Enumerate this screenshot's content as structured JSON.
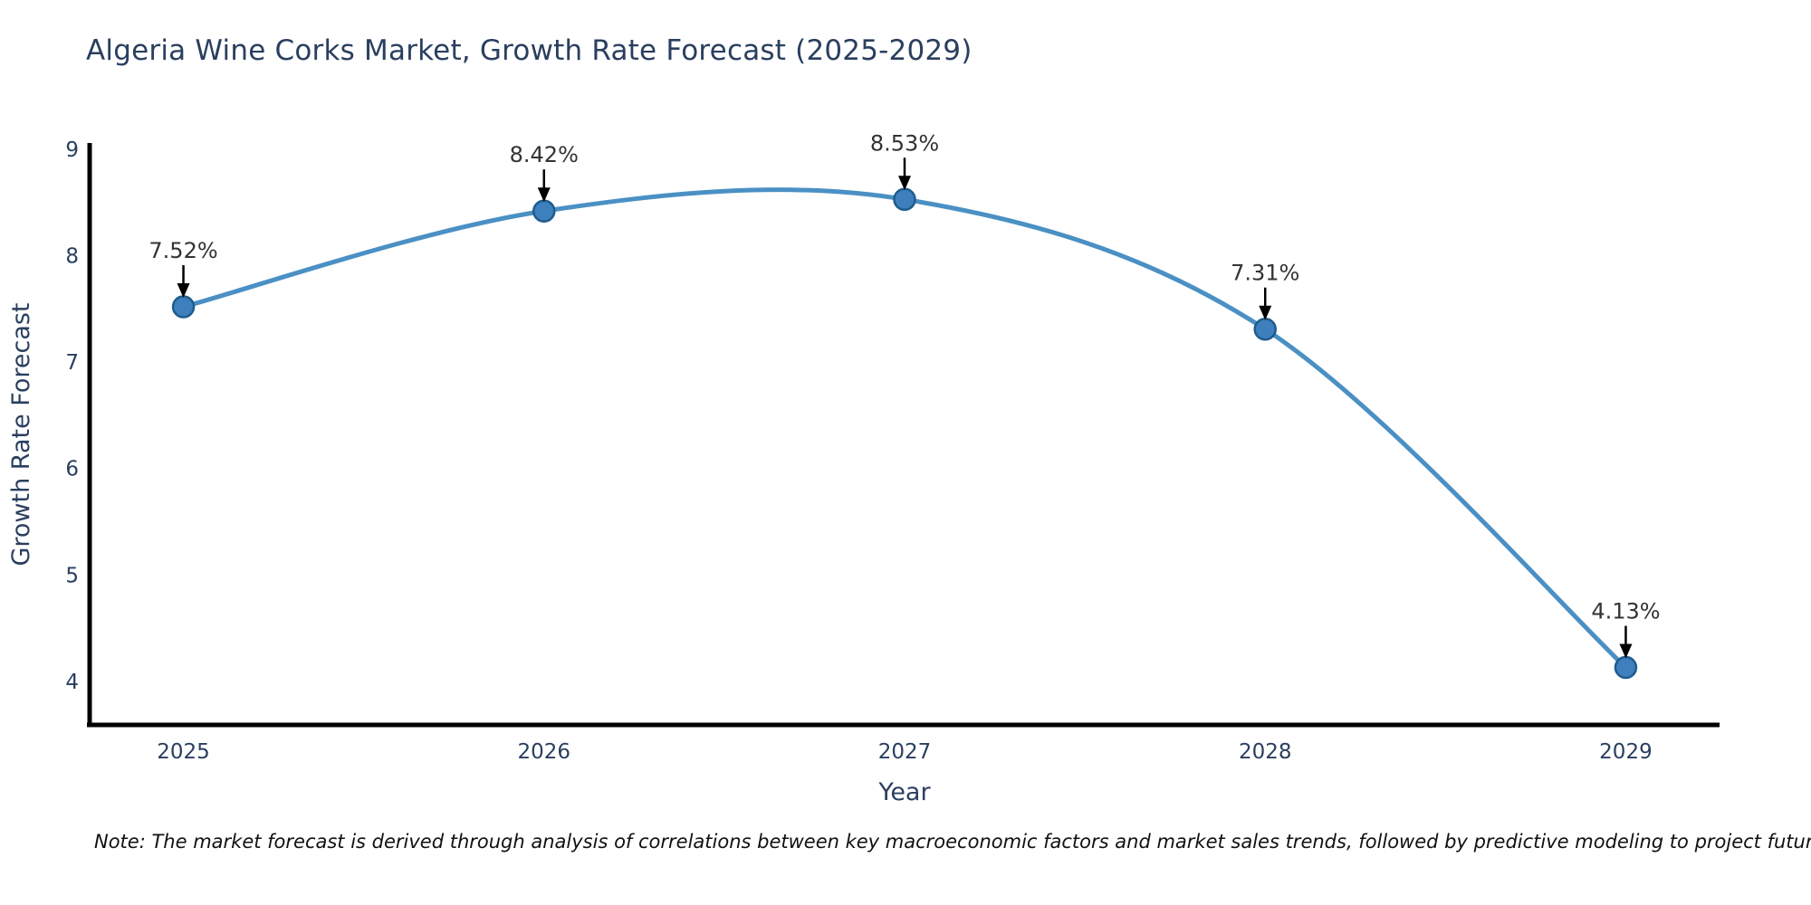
{
  "title": {
    "text": "Algeria Wine Corks Market, Growth Rate Forecast (2025-2029)"
  },
  "note": {
    "text": "Note: The market forecast is derived through analysis of correlations between key macroeconomic factors and market sales trends, followed by predictive modeling to project future sales."
  },
  "chart_data": {
    "type": "line",
    "line_shape": "spline",
    "title": "Algeria Wine Corks Market, Growth Rate Forecast (2025-2029)",
    "xlabel": "Year",
    "ylabel": "Growth Rate Forecast",
    "x": [
      2025,
      2026,
      2027,
      2028,
      2029
    ],
    "values": [
      7.52,
      8.42,
      8.53,
      7.31,
      4.13
    ],
    "point_labels": [
      "7.52%",
      "8.42%",
      "8.53%",
      "7.31%",
      "4.13%"
    ],
    "xticks": [
      2025,
      2026,
      2027,
      2028,
      2029
    ],
    "yticks": [
      4,
      5,
      6,
      7,
      8,
      9
    ],
    "xlim": [
      2024.74,
      2029.26
    ],
    "ylim": [
      3.59,
      9.06
    ],
    "grid": false,
    "legend": "none",
    "annotations": "value labels with down arrows above each point",
    "colors": {
      "line": "#4a90c4",
      "marker_fill": "#3e80be",
      "marker_edge": "#1f5c8d",
      "axis": "#000000",
      "axis_text": "#2a3f5f",
      "annotation_text": "#333333",
      "arrow": "#000000",
      "background": "#ffffff"
    }
  }
}
